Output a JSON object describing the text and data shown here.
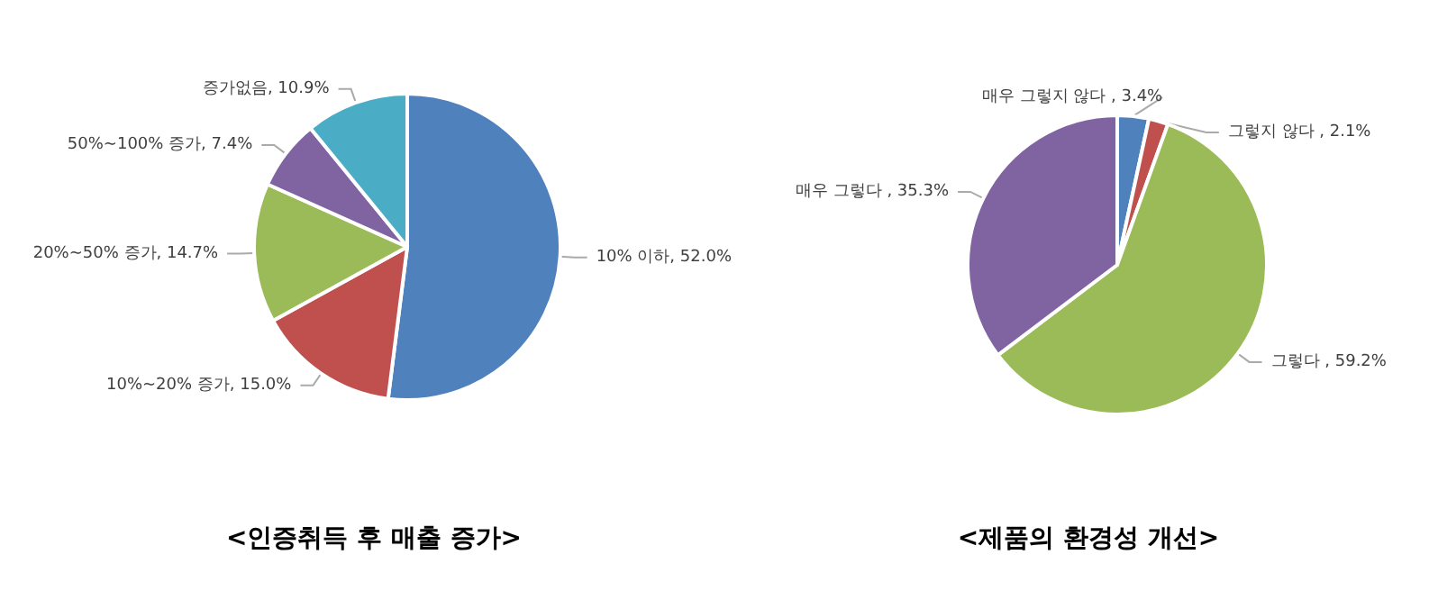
{
  "chart_data": [
    {
      "type": "pie",
      "title": "<인증취득 후 매출 증가>",
      "categories": [
        "10% 이하",
        "10%~20% 증가",
        "20%~50% 증가",
        "50%~100% 증가",
        "증가없음"
      ],
      "values": [
        52.0,
        15.0,
        14.7,
        7.4,
        10.9
      ],
      "colors": [
        "#4f81bd",
        "#c0504d",
        "#9bbb59",
        "#8064a2",
        "#4bacc6"
      ],
      "value_labels": [
        "52.0%",
        "15.0%",
        "14.7%",
        "7.4%",
        "10.9%"
      ]
    },
    {
      "type": "pie",
      "title": "<제품의 환경성 개선>",
      "categories": [
        "매우 그렇지 않다",
        "그렇지 않다",
        "그렇다",
        "매우 그렇다"
      ],
      "values": [
        3.4,
        2.1,
        59.2,
        35.3
      ],
      "colors": [
        "#4f81bd",
        "#c0504d",
        "#9bbb59",
        "#8064a2"
      ],
      "value_labels": [
        "3.4%",
        "2.1%",
        "59.2%",
        "35.3%"
      ]
    }
  ]
}
